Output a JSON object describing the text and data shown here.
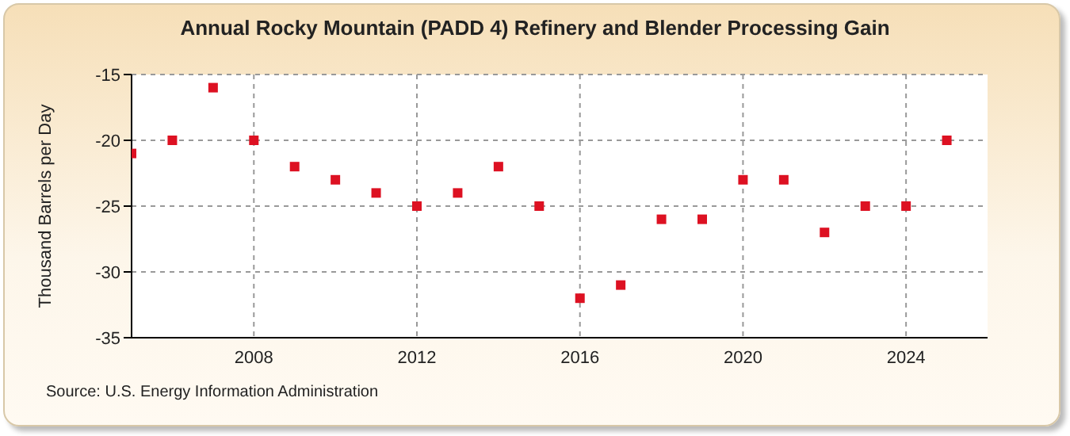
{
  "chart_data": {
    "type": "scatter",
    "title": "Annual Rocky Mountain (PADD 4) Refinery and Blender Processing Gain",
    "ylabel": "Thousand Barrels per Day",
    "annotations": [
      "Source: U.S. Energy Information Administration"
    ],
    "x": [
      2005,
      2006,
      2007,
      2008,
      2009,
      2010,
      2011,
      2012,
      2013,
      2014,
      2015,
      2016,
      2017,
      2018,
      2019,
      2020,
      2021,
      2022,
      2023,
      2024,
      2025
    ],
    "series": [
      {
        "color": "#dd1122",
        "values": [
          -21,
          -20,
          -16,
          -20,
          -22,
          -23,
          -24,
          -25,
          -24,
          -22,
          -25,
          -32,
          -31,
          -26,
          -26,
          -23,
          -23,
          -27,
          -25,
          -25,
          -20
        ]
      }
    ],
    "xlim": [
      2005,
      2026
    ],
    "xticks": [
      2008,
      2012,
      2016,
      2020,
      2024
    ],
    "ylim": [
      -35,
      -15
    ],
    "yticks": [
      -35,
      -30,
      -25,
      -20,
      -15
    ],
    "grid": true,
    "marker": "square"
  }
}
